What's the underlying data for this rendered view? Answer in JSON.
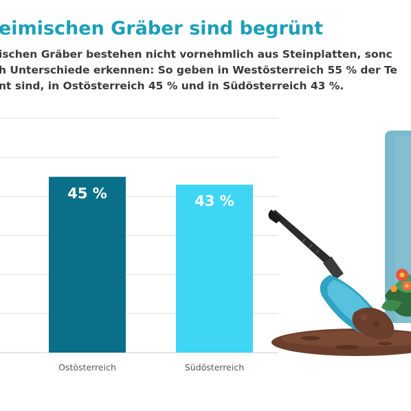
{
  "page": {
    "headline": "eimischen Gräber sind begrünt",
    "lead_lines": [
      "ischen Gräber bestehen nicht vornehmlich aus Steinplatten, sonc",
      "h Unterschiede erkennen: So geben in Westösterreich 55 % der Te",
      "nt sind, in Ostösterreich 45 % und in Südösterreich 43 %."
    ]
  },
  "colors": {
    "headline": "#1a9fb8",
    "bar_dark": "#0a7089",
    "bar_light": "#3fd6f5",
    "gridline": "#dddddd"
  },
  "chart_data": {
    "type": "bar",
    "categories": [
      "Ostösterreich",
      "Südösterreich"
    ],
    "values": [
      45,
      43
    ],
    "value_labels": [
      "45 %",
      "43 %"
    ],
    "bar_colors": [
      "#0a7089",
      "#3fd6f5"
    ],
    "ylim": [
      0,
      60
    ],
    "grid": true,
    "legend": "none"
  },
  "illustration": {
    "icons": [
      "garden-trowel-icon",
      "flower-pot-icon",
      "soil-mound-icon",
      "tombstone-icon"
    ]
  }
}
